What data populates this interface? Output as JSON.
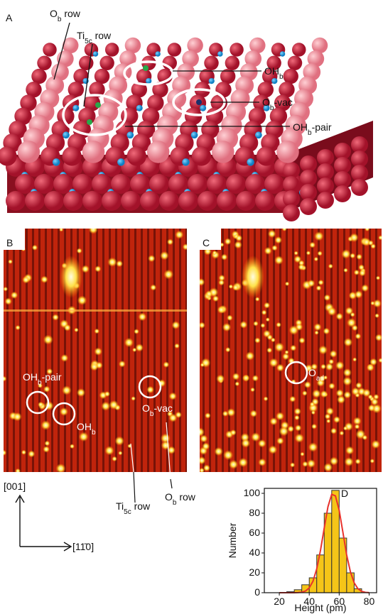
{
  "panels": {
    "a": "A",
    "b": "B",
    "c": "C",
    "d": "D"
  },
  "panel_a": {
    "labels": [
      {
        "main": "O",
        "sub": "b",
        "tail": " row"
      },
      {
        "main": "Ti",
        "sub": "5c",
        "tail": " row"
      },
      {
        "main": "OH",
        "sub": "b"
      },
      {
        "main": "O",
        "sub": "b",
        "tail": "-vac"
      },
      {
        "main": "OH",
        "sub": "b",
        "tail": "-pair"
      }
    ]
  },
  "panel_b": {
    "labels": [
      {
        "main": "OH",
        "sub": "b",
        "tail": "-pair"
      },
      {
        "main": "OH",
        "sub": "b"
      },
      {
        "main": "O",
        "sub": "b",
        "tail": "-vac"
      },
      {
        "main": "O",
        "sub": "b",
        "tail": " row"
      },
      {
        "main": "Ti",
        "sub": "5c",
        "tail": " row"
      }
    ],
    "axis_vertical": "[001]",
    "axis_horizontal": "[11̄0]"
  },
  "panel_c": {
    "labels": [
      {
        "main": "O",
        "sub": "ad"
      }
    ]
  },
  "chart_data": {
    "type": "histogram",
    "xlabel": "Height (pm)",
    "ylabel": "Number",
    "bins": [
      25,
      30,
      35,
      40,
      45,
      50,
      55,
      60,
      65,
      70,
      75
    ],
    "values": [
      1,
      3,
      8,
      15,
      38,
      80,
      103,
      55,
      20,
      4
    ],
    "color": "#f5c518",
    "fit": {
      "color": "#e8322c",
      "x": [
        20,
        22.5,
        25,
        27.5,
        30,
        32.5,
        35,
        37.5,
        40,
        42.5,
        45,
        47.5,
        50,
        52.5,
        55,
        57.5,
        60,
        62.5,
        65,
        67.5,
        70,
        72.5,
        75,
        77.5,
        80
      ],
      "values": [
        0,
        0,
        0,
        0,
        0,
        0.2,
        0.5,
        1.7,
        4.8,
        11.5,
        24,
        42.5,
        65,
        86.5,
        99,
        97.4,
        83,
        60.7,
        38,
        21,
        10,
        4,
        1.4,
        0.4,
        0.1
      ]
    },
    "xlim": [
      10,
      85
    ],
    "xticks": [
      20,
      40,
      60,
      80
    ],
    "ylim": [
      0,
      105
    ],
    "yticks": [
      0,
      20,
      40,
      60,
      80,
      100
    ]
  }
}
